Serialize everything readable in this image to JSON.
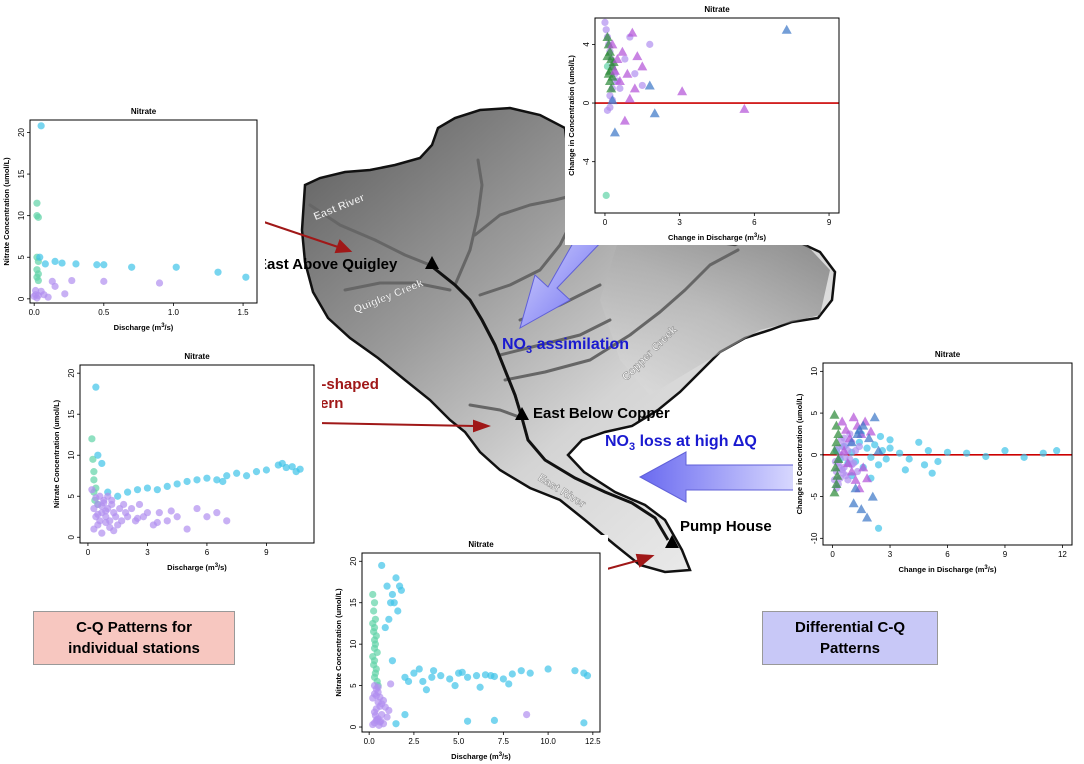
{
  "colors": {
    "teal": "#5fd3a6",
    "cyan": "#3fc3e8",
    "purple": "#b08ef0",
    "magenta": "#b455d8",
    "green": "#2e8b3a",
    "steelblue": "#3f78c8",
    "zero_line": "#cc0000",
    "arrow_red": "#a01818",
    "annot_blue": "#1a1ad0",
    "box_red": "#f7c7c0",
    "box_blue": "#c8c8f7"
  },
  "map": {
    "stations": {
      "quigley": "East Above Quigley",
      "copper": "East Below Copper",
      "pump": "Pump House"
    },
    "streams": {
      "east_river_top": "East River",
      "quigley_creek": "Quigley Creek",
      "copper_creek": "Copper Creek",
      "east_river_bottom": "East River"
    },
    "annotations": {
      "similar_line1": "Similar L-shaped",
      "similar_line2": "pattern",
      "no3_assim_prefix": "NO",
      "no3_assim_sub": "3",
      "no3_assim_suffix": " assimilation",
      "no3_loss_prefix": "NO",
      "no3_loss_sub": "3",
      "no3_loss_suffix": " loss at high ΔQ"
    }
  },
  "boxes": {
    "left_line1": "C-Q Patterns for",
    "left_line2": "individual stations",
    "right_line1": "Differential C-Q",
    "right_line2": "Patterns"
  },
  "chart_data": [
    {
      "id": "quigley",
      "type": "scatter",
      "title": "Nitrate",
      "xlabel": "Discharge (m3/s)",
      "ylabel": "Nitrate Concentration (umol/L)",
      "xlim": [
        -0.03,
        1.6
      ],
      "ylim": [
        -0.5,
        21.5
      ],
      "xticks": [
        0.0,
        0.5,
        1.0,
        1.5
      ],
      "xtick_labels": [
        "0.0",
        "0.5",
        "1.0",
        "1.5"
      ],
      "yticks": [
        0,
        5,
        10,
        15,
        20
      ],
      "series": [
        {
          "color": "teal",
          "marker": "circle",
          "x": [
            0.02,
            0.02,
            0.03,
            0.02,
            0.03,
            0.02,
            0.03,
            0.02,
            0.03
          ],
          "y": [
            11.5,
            10,
            9.8,
            5,
            4.5,
            3.5,
            3,
            2.6,
            2.2
          ]
        },
        {
          "color": "cyan",
          "marker": "circle",
          "x": [
            0.05,
            0.04,
            0.08,
            0.15,
            0.2,
            0.3,
            0.45,
            0.5,
            0.7,
            1.02,
            1.32,
            1.52
          ],
          "y": [
            20.8,
            5,
            4.2,
            4.5,
            4.3,
            4.2,
            4.1,
            4.1,
            3.8,
            3.8,
            3.2,
            2.6
          ]
        },
        {
          "color": "purple",
          "marker": "circle",
          "x": [
            0.0,
            0.01,
            0.01,
            0.02,
            0.03,
            0.05,
            0.07,
            0.1,
            0.13,
            0.15,
            0.22,
            0.27,
            0.5,
            0.9
          ],
          "y": [
            0.3,
            1.0,
            0.5,
            0.1,
            0.4,
            0.9,
            0.5,
            0.2,
            2.1,
            1.5,
            0.6,
            2.2,
            2.1,
            1.9
          ]
        }
      ]
    },
    {
      "id": "copper",
      "type": "scatter",
      "title": "Nitrate",
      "xlabel": "Discharge (m3/s)",
      "ylabel": "Nitrate Concentration (umol/L)",
      "xlim": [
        -0.4,
        11.4
      ],
      "ylim": [
        -0.7,
        21
      ],
      "xticks": [
        0,
        3,
        6,
        9
      ],
      "xtick_labels": [
        "0",
        "3",
        "6",
        "9"
      ],
      "yticks": [
        0,
        5,
        10,
        15,
        20
      ],
      "series": [
        {
          "color": "teal",
          "marker": "circle",
          "x": [
            0.2,
            0.25,
            0.3,
            0.3,
            0.4,
            0.3,
            0.35,
            0.5
          ],
          "y": [
            12,
            9.5,
            8,
            7,
            6,
            5.5,
            4.5,
            4
          ]
        },
        {
          "color": "cyan",
          "marker": "circle",
          "x": [
            0.4,
            0.5,
            0.7,
            1.0,
            1.5,
            2.0,
            2.5,
            3.0,
            3.5,
            4.0,
            5.0,
            5.5,
            6.0,
            6.5,
            7.0,
            7.5,
            8.0,
            8.5,
            9.0,
            9.6,
            9.8,
            10.0,
            10.3,
            10.5,
            10.7,
            4.5,
            6.8
          ],
          "y": [
            18.3,
            10,
            9,
            5.5,
            5,
            5.5,
            5.8,
            6,
            5.8,
            6.2,
            6.8,
            7,
            7.2,
            7,
            7.5,
            7.8,
            7.5,
            8,
            8.2,
            8.8,
            9,
            8.5,
            8.6,
            8,
            8.3,
            6.5,
            6.8
          ]
        },
        {
          "color": "purple",
          "marker": "circle",
          "x": [
            0.2,
            0.3,
            0.4,
            0.5,
            0.6,
            0.7,
            0.8,
            0.9,
            1.0,
            1.1,
            1.2,
            1.3,
            1.4,
            1.5,
            1.6,
            1.7,
            1.8,
            1.9,
            2.0,
            2.2,
            2.4,
            2.6,
            2.8,
            3.0,
            3.3,
            3.6,
            4.0,
            4.5,
            5.0,
            5.5,
            6.0,
            6.5,
            7.0,
            0.3,
            0.5,
            0.7,
            0.9,
            1.1,
            1.3,
            0.4,
            0.6,
            0.8,
            1.0,
            1.2,
            0.5,
            0.7,
            0.9,
            2.5,
            3.5,
            4.2
          ],
          "y": [
            5.8,
            3.5,
            2.5,
            4,
            2,
            3,
            4.5,
            2.5,
            3.5,
            2,
            4,
            3,
            2.5,
            1.5,
            3.5,
            2,
            4,
            3,
            2.5,
            3.5,
            2,
            4,
            2.5,
            3,
            1.5,
            3,
            2,
            2.5,
            1,
            3.5,
            2.5,
            3,
            2,
            1,
            1.5,
            0.5,
            1.8,
            1.2,
            0.8,
            4.8,
            5,
            4.2,
            5,
            4.5,
            2.8,
            3.8,
            3.2,
            2.3,
            1.8,
            3.2
          ]
        }
      ]
    },
    {
      "id": "pump",
      "type": "scatter",
      "title": "Nitrate",
      "xlabel": "Discharge (m3/s)",
      "ylabel": "Nitrate Concentration (umol/L)",
      "xlim": [
        -0.4,
        12.9
      ],
      "ylim": [
        -0.6,
        21
      ],
      "xticks": [
        0.0,
        2.5,
        5.0,
        7.5,
        10.0,
        12.5
      ],
      "xtick_labels": [
        "0.0",
        "2.5",
        "5.0",
        "7.5",
        "10.0",
        "12.5"
      ],
      "yticks": [
        0,
        5,
        10,
        15,
        20
      ],
      "series": [
        {
          "color": "teal",
          "marker": "circle",
          "x": [
            0.2,
            0.3,
            0.25,
            0.35,
            0.3,
            0.25,
            0.4,
            0.35,
            0.3,
            0.45,
            0.2,
            0.3,
            0.25,
            0.4,
            0.35,
            0.3,
            0.45,
            0.5,
            0.2,
            0.3
          ],
          "y": [
            16,
            15,
            14,
            13,
            12,
            11.5,
            11,
            10,
            9.5,
            9,
            8.5,
            8,
            7.5,
            7,
            6.5,
            6,
            5.5,
            5,
            12.5,
            10.5
          ]
        },
        {
          "color": "cyan",
          "marker": "circle",
          "x": [
            0.7,
            1.0,
            1.3,
            1.5,
            1.7,
            1.4,
            1.8,
            1.2,
            1.6,
            0.9,
            1.1,
            2.0,
            2.5,
            3.0,
            3.5,
            4.0,
            4.5,
            5.0,
            5.5,
            6.0,
            6.5,
            7.0,
            7.5,
            8.0,
            8.5,
            9.0,
            10.0,
            11.5,
            12.0,
            12.2,
            3.2,
            4.8,
            6.2,
            7.8,
            2.2,
            2.8,
            3.6,
            5.2,
            6.8,
            12,
            5.5,
            7.0,
            1.5,
            2.0,
            1.3
          ],
          "y": [
            19.5,
            17,
            16,
            18,
            17,
            15,
            16.5,
            15,
            14,
            12,
            13,
            6,
            6.5,
            5.5,
            6,
            6.2,
            5.8,
            6.5,
            6,
            6.2,
            6.3,
            6.1,
            5.8,
            6.4,
            6.8,
            6.5,
            7,
            6.8,
            6.5,
            6.2,
            4.5,
            5,
            4.8,
            5.2,
            5.5,
            7,
            6.8,
            6.6,
            6.2,
            0.5,
            0.7,
            0.8,
            0.4,
            1.5,
            8
          ]
        },
        {
          "color": "purple",
          "marker": "circle",
          "x": [
            0.2,
            0.3,
            0.4,
            0.5,
            0.6,
            0.7,
            0.8,
            0.3,
            0.4,
            0.5,
            0.6,
            0.2,
            0.3,
            0.4,
            0.5,
            0.6,
            0.3,
            0.4,
            0.5,
            0.7,
            0.8,
            0.9,
            1.0,
            1.1,
            0.35,
            0.45,
            0.55,
            0.65,
            8.8,
            1.2
          ],
          "y": [
            0.3,
            0.5,
            0.8,
            1,
            0.6,
            1.5,
            0.4,
            1.8,
            2.2,
            3,
            2.5,
            3.5,
            4,
            3.8,
            4.2,
            3.6,
            5,
            4.6,
            4.8,
            2.8,
            3.2,
            2.4,
            1.2,
            2,
            1.4,
            0.9,
            0.2,
            0.7,
            1.5,
            5.2
          ]
        }
      ]
    },
    {
      "id": "diff_top",
      "type": "scatter",
      "title": "Nitrate",
      "xlabel": "Change in Discharge (m3/s)",
      "ylabel": "Change in Concentration (umol/L)",
      "xlim": [
        -0.4,
        9.4
      ],
      "ylim": [
        -7.5,
        5.8
      ],
      "xticks": [
        0,
        3,
        6,
        9
      ],
      "xtick_labels": [
        "0",
        "3",
        "6",
        "9"
      ],
      "yticks": [
        -4,
        0,
        4
      ],
      "zero_line": 0,
      "series": [
        {
          "color": "teal",
          "marker": "circle",
          "x": [
            0.05,
            0.1
          ],
          "y": [
            -6.3,
            2.5
          ]
        },
        {
          "color": "purple",
          "marker": "circle",
          "x": [
            0.0,
            0.05,
            0.1,
            0.15,
            0.2,
            0.25,
            0.3,
            0.4,
            0.5,
            0.6,
            0.8,
            1.0,
            1.2,
            1.5,
            1.8,
            0.1,
            0.2,
            0.3,
            0.4,
            0.2,
            0.3
          ],
          "y": [
            5.5,
            5,
            4.5,
            4,
            3.5,
            3,
            2.5,
            2,
            1.5,
            1,
            3,
            4.5,
            2,
            1.2,
            4,
            -0.5,
            0.5,
            1,
            1.5,
            -0.3,
            0.2
          ]
        },
        {
          "color": "green",
          "marker": "triangle",
          "x": [
            0.1,
            0.15,
            0.2,
            0.25,
            0.3,
            0.15,
            0.2,
            0.25,
            0.35,
            0.1,
            0.2,
            0.3
          ],
          "y": [
            4.5,
            4,
            3.5,
            3,
            2.5,
            2,
            1.5,
            1,
            2.8,
            3.2,
            2.2,
            1.8
          ]
        },
        {
          "color": "magenta",
          "marker": "triangle",
          "x": [
            0.3,
            0.5,
            0.7,
            0.9,
            1.1,
            1.3,
            1.5,
            3.1,
            5.6,
            0.6,
            0.8,
            1.0,
            1.2,
            0.4
          ],
          "y": [
            4,
            3,
            3.5,
            2,
            4.8,
            3.2,
            2.5,
            0.8,
            -0.4,
            1.5,
            -1.2,
            0.3,
            1.0,
            2.2
          ]
        },
        {
          "color": "steelblue",
          "marker": "triangle",
          "x": [
            0.3,
            0.4,
            2.0,
            7.3,
            1.8
          ],
          "y": [
            0.2,
            -2,
            -0.7,
            5,
            1.2
          ]
        }
      ]
    },
    {
      "id": "diff_right",
      "type": "scatter",
      "title": "Nitrate",
      "xlabel": "Change in Discharge (m3/s)",
      "ylabel": "Change in Concentration (umol/L)",
      "xlim": [
        -0.5,
        12.5
      ],
      "ylim": [
        -10.8,
        11
      ],
      "xticks": [
        0,
        3,
        6,
        9,
        12
      ],
      "xtick_labels": [
        "0",
        "3",
        "6",
        "9",
        "12"
      ],
      "yticks": [
        -10,
        -5,
        0,
        5,
        10
      ],
      "zero_line": 0,
      "series": [
        {
          "color": "cyan",
          "marker": "circle",
          "x": [
            0.2,
            0.4,
            0.6,
            0.8,
            1.0,
            1.2,
            1.4,
            1.6,
            1.8,
            2.0,
            2.2,
            2.4,
            2.6,
            2.8,
            3.0,
            3.5,
            4.0,
            4.5,
            5.0,
            5.5,
            6.0,
            7.0,
            8.0,
            9.0,
            10.0,
            11.0,
            11.7,
            1.0,
            1.5,
            2.0,
            2.5,
            3.0,
            3.8,
            4.8,
            2.4,
            5.2
          ],
          "y": [
            0.5,
            -0.5,
            1,
            -1,
            0.3,
            -0.8,
            1.5,
            -1.5,
            0.8,
            -0.3,
            1.2,
            -1.2,
            0.5,
            -0.5,
            0.8,
            0.2,
            -0.5,
            1.5,
            0.5,
            -0.8,
            0.3,
            0.2,
            -0.2,
            0.5,
            -0.3,
            0.2,
            0.5,
            -2.5,
            2.5,
            -2.8,
            2.2,
            1.8,
            -1.8,
            -1.2,
            -8.8,
            -2.2
          ]
        },
        {
          "color": "purple",
          "marker": "circle",
          "x": [
            0.1,
            0.2,
            0.3,
            0.4,
            0.5,
            0.6,
            0.7,
            0.8,
            0.9,
            1.0,
            1.1,
            1.2,
            1.3,
            1.4,
            0.2,
            0.3,
            0.4,
            0.5,
            0.6,
            0.7,
            0.8,
            0.9,
            1.0,
            0.15,
            0.25,
            0.35,
            0.45,
            0.55,
            0.65
          ],
          "y": [
            -3,
            -2,
            -1,
            0,
            1,
            -1.5,
            -2.5,
            0.5,
            -0.5,
            1.5,
            -1,
            0.5,
            -2,
            1,
            -4,
            -3.5,
            -2.8,
            -1.8,
            2,
            1.2,
            -3,
            2.5,
            -1.2,
            -0.8,
            0.8,
            -1.5,
            1.8,
            -2.2,
            -0.3
          ]
        },
        {
          "color": "green",
          "marker": "triangle",
          "x": [
            0.1,
            0.2,
            0.3,
            0.2,
            0.1,
            0.3,
            0.15,
            0.25,
            0.2,
            0.1
          ],
          "y": [
            4.8,
            3.5,
            2.5,
            1.5,
            0.5,
            -0.5,
            -1.5,
            -2.5,
            -3.5,
            -4.5
          ]
        },
        {
          "color": "magenta",
          "marker": "triangle",
          "x": [
            0.5,
            0.7,
            0.9,
            1.1,
            1.3,
            1.5,
            1.7,
            0.8,
            1.0,
            1.2,
            1.4,
            1.6,
            0.6,
            2.0,
            1.8
          ],
          "y": [
            4,
            3,
            2,
            4.5,
            3.5,
            2.5,
            4,
            -1,
            -2,
            -3,
            -4,
            -1.5,
            0.5,
            2.8,
            -2.8
          ]
        },
        {
          "color": "steelblue",
          "marker": "triangle",
          "x": [
            1.0,
            1.3,
            1.6,
            1.9,
            2.2,
            1.5,
            1.8,
            2.1,
            1.2,
            2.4,
            1.1,
            1.4
          ],
          "y": [
            1.5,
            2.5,
            3.5,
            2,
            4.5,
            -6.5,
            -7.5,
            -5,
            -4,
            0.5,
            -5.8,
            3
          ]
        }
      ]
    }
  ]
}
